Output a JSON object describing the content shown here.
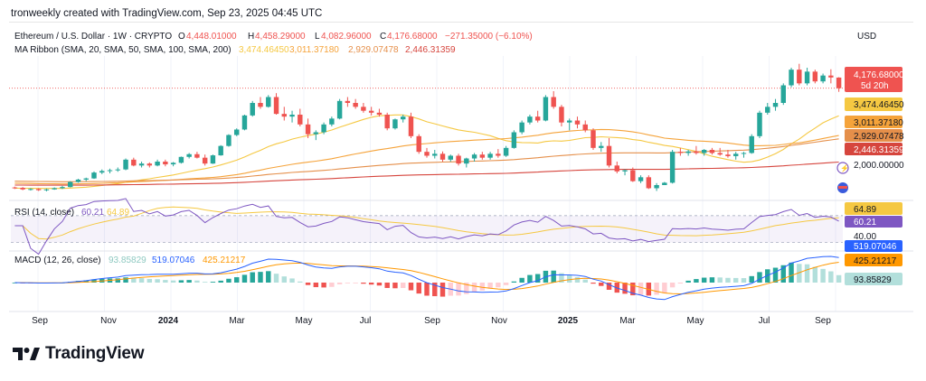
{
  "header": {
    "caption": "tronweekly created with TradingView.com, Sep 23, 2025 04:45 UTC"
  },
  "legend": {
    "symbol": "Ethereum / U.S. Dollar · 1W · CRYPTO",
    "o_label": "O",
    "o": "4,448.01000",
    "h_label": "H",
    "h": "4,458.29000",
    "l_label": "L",
    "l": "4,082.96000",
    "c_label": "C",
    "c": "4,176.68000",
    "change": "−271.35000 (−6.10%)",
    "ma_label": "MA Ribbon (SMA, 20, SMA, 50, SMA, 100, SMA, 200)",
    "ma20": "3,474.46450",
    "ma50": "3,011.37180",
    "ma100": "2,929.07478",
    "ma200": "2,446.31359"
  },
  "currency": "USD",
  "price_labels": {
    "last": "4,176.68000",
    "countdown": "5d 20h",
    "ma20": "3,474.46450",
    "ma50": "3,011.37180",
    "ma100": "2,929.07478",
    "ma200": "2,446.31359",
    "tick": "2,000.00000"
  },
  "rsi": {
    "label": "RSI (14, close)",
    "rsi": "60.21",
    "ma": "64.89",
    "axis_label": "40.00"
  },
  "macd": {
    "label": "MACD (12, 26, close)",
    "hist": "93.85829",
    "macd": "519.07046",
    "signal": "425.21217"
  },
  "time_axis": [
    "Sep",
    "Nov",
    "2024",
    "Mar",
    "May",
    "Jul",
    "Sep",
    "Nov",
    "2025",
    "Mar",
    "May",
    "Jul",
    "Sep"
  ],
  "colors": {
    "up": "#26a69a",
    "down": "#ef5350",
    "ma20": "#f5c842",
    "ma50": "#f5a33a",
    "ma100": "#e58f4a",
    "ma200": "#d6453d",
    "rsi": "#7e57c2",
    "macd": "#2962ff",
    "signal": "#ff9800"
  },
  "brand": "TradingView",
  "chart_data": {
    "type": "candlestick",
    "title": "Ethereum / U.S. Dollar · 1W · CRYPTO",
    "ylim": [
      1400,
      5000
    ],
    "weeks_approx": [
      [
        1640,
        1660,
        1600,
        1630
      ],
      [
        1630,
        1650,
        1570,
        1590
      ],
      [
        1590,
        1620,
        1560,
        1600
      ],
      [
        1600,
        1620,
        1550,
        1570
      ],
      [
        1570,
        1610,
        1540,
        1590
      ],
      [
        1590,
        1640,
        1580,
        1620
      ],
      [
        1620,
        1680,
        1600,
        1650
      ],
      [
        1650,
        1800,
        1640,
        1780
      ],
      [
        1780,
        1860,
        1760,
        1840
      ],
      [
        1840,
        1890,
        1800,
        1870
      ],
      [
        1870,
        2050,
        1860,
        2020
      ],
      [
        2020,
        2100,
        1980,
        2060
      ],
      [
        2060,
        2120,
        2000,
        2080
      ],
      [
        2080,
        2150,
        2040,
        2100
      ],
      [
        2100,
        2380,
        2080,
        2350
      ],
      [
        2350,
        2400,
        2180,
        2200
      ],
      [
        2200,
        2300,
        2150,
        2250
      ],
      [
        2250,
        2280,
        2150,
        2200
      ],
      [
        2200,
        2350,
        2180,
        2300
      ],
      [
        2300,
        2350,
        2180,
        2230
      ],
      [
        2230,
        2290,
        2180,
        2270
      ],
      [
        2270,
        2430,
        2250,
        2420
      ],
      [
        2420,
        2520,
        2380,
        2490
      ],
      [
        2490,
        2550,
        2380,
        2400
      ],
      [
        2400,
        2480,
        2200,
        2250
      ],
      [
        2250,
        2480,
        2240,
        2460
      ],
      [
        2460,
        2720,
        2450,
        2700
      ],
      [
        2700,
        3000,
        2680,
        2980
      ],
      [
        2980,
        3150,
        2950,
        3120
      ],
      [
        3120,
        3500,
        3100,
        3480
      ],
      [
        3480,
        3850,
        3450,
        3800
      ],
      [
        3800,
        3950,
        3650,
        3700
      ],
      [
        3700,
        4000,
        3680,
        3950
      ],
      [
        3950,
        4050,
        3500,
        3520
      ],
      [
        3520,
        3700,
        3350,
        3450
      ],
      [
        3450,
        3600,
        3300,
        3500
      ],
      [
        3500,
        3650,
        3200,
        3250
      ],
      [
        3250,
        3400,
        2900,
        3000
      ],
      [
        3000,
        3100,
        2850,
        3050
      ],
      [
        3050,
        3300,
        3000,
        3250
      ],
      [
        3250,
        3450,
        3200,
        3400
      ],
      [
        3400,
        3900,
        3380,
        3850
      ],
      [
        3850,
        3950,
        3700,
        3800
      ],
      [
        3800,
        3900,
        3650,
        3700
      ],
      [
        3700,
        3800,
        3550,
        3600
      ],
      [
        3600,
        3700,
        3480,
        3550
      ],
      [
        3550,
        3650,
        3450,
        3500
      ],
      [
        3500,
        3550,
        3100,
        3150
      ],
      [
        3150,
        3400,
        3120,
        3380
      ],
      [
        3380,
        3500,
        3300,
        3450
      ],
      [
        3450,
        3550,
        2900,
        2950
      ],
      [
        2950,
        3000,
        2500,
        2550
      ],
      [
        2550,
        2650,
        2400,
        2450
      ],
      [
        2450,
        2600,
        2380,
        2500
      ],
      [
        2500,
        2560,
        2300,
        2350
      ],
      [
        2350,
        2480,
        2300,
        2450
      ],
      [
        2450,
        2500,
        2200,
        2250
      ],
      [
        2250,
        2400,
        2150,
        2380
      ],
      [
        2380,
        2520,
        2300,
        2480
      ],
      [
        2480,
        2550,
        2350,
        2400
      ],
      [
        2400,
        2550,
        2350,
        2500
      ],
      [
        2500,
        2620,
        2400,
        2450
      ],
      [
        2450,
        2700,
        2420,
        2650
      ],
      [
        2650,
        3100,
        2630,
        3050
      ],
      [
        3050,
        3350,
        3000,
        3300
      ],
      [
        3300,
        3500,
        3250,
        3450
      ],
      [
        3450,
        3600,
        3300,
        3350
      ],
      [
        3350,
        4000,
        3330,
        3950
      ],
      [
        3950,
        4100,
        3650,
        3700
      ],
      [
        3700,
        3750,
        3200,
        3300
      ],
      [
        3300,
        3400,
        3100,
        3350
      ],
      [
        3350,
        3450,
        3150,
        3250
      ],
      [
        3250,
        3350,
        3050,
        3100
      ],
      [
        3100,
        3150,
        2600,
        2650
      ],
      [
        2650,
        2800,
        2550,
        2700
      ],
      [
        2700,
        2900,
        2150,
        2200
      ],
      [
        2200,
        2300,
        2000,
        2050
      ],
      [
        2050,
        2100,
        1950,
        2080
      ],
      [
        2080,
        2150,
        1780,
        1800
      ],
      [
        1800,
        1950,
        1750,
        1900
      ],
      [
        1900,
        1950,
        1600,
        1620
      ],
      [
        1620,
        1750,
        1550,
        1700
      ],
      [
        1700,
        1780,
        1700,
        1760
      ],
      [
        1760,
        2600,
        1740,
        2550
      ],
      [
        2550,
        2650,
        2450,
        2520
      ],
      [
        2520,
        2600,
        2450,
        2560
      ],
      [
        2560,
        2700,
        2480,
        2520
      ],
      [
        2520,
        2620,
        2450,
        2600
      ],
      [
        2600,
        2650,
        2480,
        2520
      ],
      [
        2520,
        2650,
        2450,
        2480
      ],
      [
        2480,
        2600,
        2400,
        2440
      ],
      [
        2440,
        2550,
        2350,
        2500
      ],
      [
        2500,
        2550,
        2400,
        2520
      ],
      [
        2520,
        3000,
        2500,
        2950
      ],
      [
        2950,
        3600,
        2900,
        3550
      ],
      [
        3550,
        3800,
        3500,
        3700
      ],
      [
        3700,
        3900,
        3600,
        3800
      ],
      [
        3800,
        4300,
        3750,
        4250
      ],
      [
        4250,
        4700,
        4200,
        4650
      ],
      [
        4650,
        4800,
        4250,
        4300
      ],
      [
        4300,
        4700,
        4250,
        4600
      ],
      [
        4600,
        4650,
        4300,
        4350
      ],
      [
        4350,
        4550,
        4300,
        4500
      ],
      [
        4500,
        4660,
        4300,
        4450
      ],
      [
        4448,
        4458,
        4083,
        4177
      ]
    ],
    "ma_ribbon": {
      "sma20": 3474.4645,
      "sma50": 3011.3718,
      "sma100": 2929.07478,
      "sma200": 2446.31359
    },
    "rsi": {
      "value": 60.21,
      "ma": 64.89,
      "levels": [
        30,
        70
      ]
    },
    "macd": {
      "hist": 93.85829,
      "macd": 519.07046,
      "signal": 425.21217
    },
    "xlabels": [
      "Sep",
      "Nov",
      "2024",
      "Mar",
      "May",
      "Jul",
      "Sep",
      "Nov",
      "2025",
      "Mar",
      "May",
      "Jul",
      "Sep"
    ]
  }
}
